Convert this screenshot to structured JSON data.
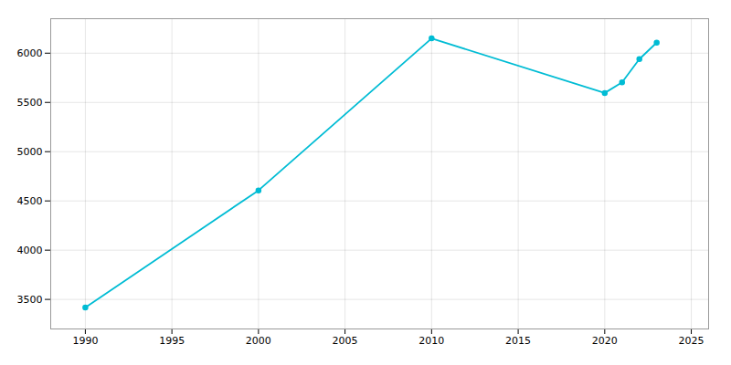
{
  "chart_data": {
    "type": "line",
    "x": [
      1990,
      2000,
      2010,
      2020,
      2021,
      2022,
      2023
    ],
    "values": [
      3417,
      4607,
      6150,
      5596,
      5704,
      5940,
      6107
    ],
    "color": "#00bcd4",
    "marker": "circle",
    "xlim": [
      1988,
      2026
    ],
    "ylim": [
      3200,
      6350
    ],
    "xticks": [
      1990,
      1995,
      2000,
      2005,
      2010,
      2015,
      2020,
      2025
    ],
    "yticks": [
      3500,
      4000,
      4500,
      5000,
      5500,
      6000
    ],
    "grid": true
  }
}
